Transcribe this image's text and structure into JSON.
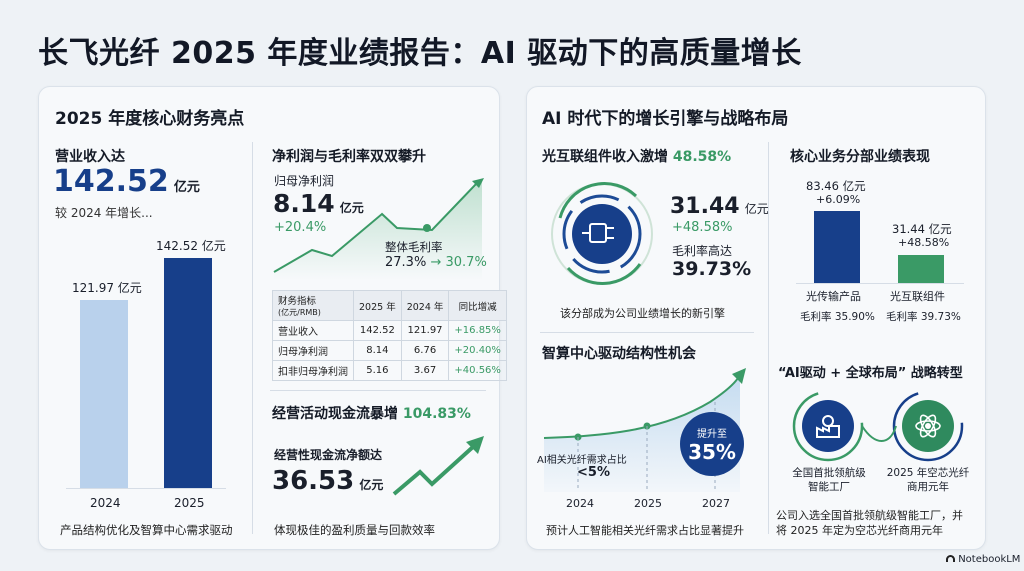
{
  "page": {
    "title": "长飞光纤 2025 年度业绩报告：AI 驱动下的高质量增长",
    "brand": "NotebookLM"
  },
  "left": {
    "heading": "2025 年度核心财务亮点",
    "revenue": {
      "label": "营业收入达",
      "value": "142.52",
      "unit": "亿元",
      "compare": "较 2024 年增长...",
      "bars": [
        {
          "year": "2024",
          "label": "121.97 亿元",
          "value": 121.97,
          "color": "#b9d1ec"
        },
        {
          "year": "2025",
          "label": "142.52 亿元",
          "value": 142.52,
          "color": "#173f8a"
        }
      ],
      "caption": "产品结构优化及智算中心需求驱动"
    },
    "profit": {
      "heading": "净利润与毛利率双双攀升",
      "net_label": "归母净利润",
      "net_value": "8.14",
      "net_unit": "亿元",
      "net_growth": "+20.4%",
      "margin_label": "整体毛利率",
      "margin_from": "27.3%",
      "arrow": "→",
      "margin_to": "30.7%"
    },
    "table": {
      "headers": [
        "财务指标",
        "(亿元/RMB)",
        "2025 年",
        "2024 年",
        "同比增减"
      ],
      "rows": [
        [
          "营业收入",
          "142.52",
          "121.97",
          "+16.85%"
        ],
        [
          "归母净利润",
          "8.14",
          "6.76",
          "+20.40%"
        ],
        [
          "扣非归母净利润",
          "5.16",
          "3.67",
          "+40.56%"
        ]
      ]
    },
    "cash": {
      "heading": "经营活动现金流暴增",
      "heading_pct": "104.83%",
      "label": "经营性现金流净额达",
      "value": "36.53",
      "unit": "亿元",
      "caption": "体现极佳的盈利质量与回款效率"
    }
  },
  "right": {
    "heading": "AI 时代下的增长引擎与战略布局",
    "optical": {
      "heading": "光互联组件收入激增",
      "heading_pct": "48.58%",
      "value": "31.44",
      "unit": "亿元",
      "growth": "+48.58%",
      "margin_label": "毛利率高达",
      "margin": "39.73%",
      "caption": "该分部成为公司业绩增长的新引擎"
    },
    "segments": {
      "heading": "核心业务分部业绩表现",
      "bars": [
        {
          "value_label": "83.46 亿元",
          "growth": "+6.09%",
          "name": "光传输产品",
          "margin": "毛利率 35.90%",
          "value": 83.46,
          "color": "#173f8a"
        },
        {
          "value_label": "31.44 亿元",
          "growth": "+48.58%",
          "name": "光互联组件",
          "margin": "毛利率 39.73%",
          "value": 31.44,
          "color": "#3a9a66"
        }
      ]
    },
    "ai": {
      "heading": "智算中心驱动结构性机会",
      "start_label": "AI相关光纤需求占比",
      "start_value": "<5%",
      "badge_top": "提升至",
      "badge_value": "35%",
      "years": [
        "2024",
        "2025",
        "2027"
      ],
      "caption": "预计人工智能相关光纤需求占比显著提升"
    },
    "strategy": {
      "heading": "“AI驱动 + 全球布局” 战略转型",
      "item1": "全国首批领航级智能工厂",
      "item2": "2025 年空芯光纤商用元年",
      "caption1": "公司入选全国首批领航级智能工厂，并",
      "caption2": "将 2025 年定为空芯光纤商用元年"
    }
  }
}
